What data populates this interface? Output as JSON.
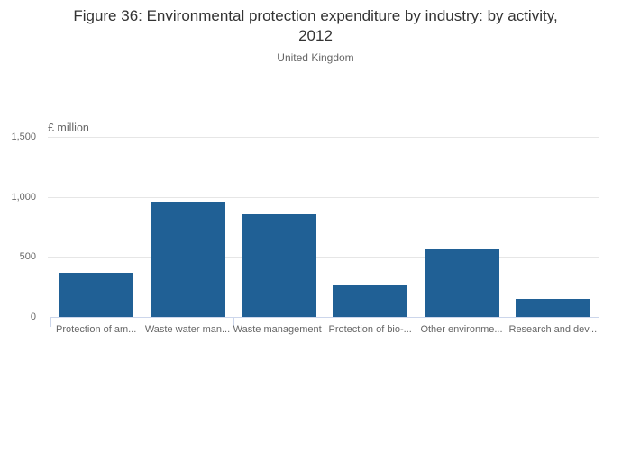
{
  "chart_data": {
    "type": "bar",
    "title": "Figure 36: Environmental protection expenditure by industry: by activity, 2012",
    "subtitle": "United Kingdom",
    "ylabel": "£ million",
    "categories": [
      "Protection of am...",
      "Waste water man...",
      "Waste management",
      "Protection of bio-...",
      "Other environme...",
      "Research and dev..."
    ],
    "values": [
      365,
      960,
      855,
      265,
      570,
      150
    ],
    "ylim": [
      0,
      1500
    ],
    "yticks": [
      0,
      500,
      1000,
      1500
    ],
    "ytick_labels": [
      "0",
      "500",
      "1,000",
      "1,500"
    ],
    "grid": true,
    "legend": "none",
    "colors": {
      "bar": "#206095",
      "gridline": "#e6e6e6",
      "axis_line": "#ccd6eb",
      "label_text": "#666666",
      "title_text": "#333333"
    }
  }
}
